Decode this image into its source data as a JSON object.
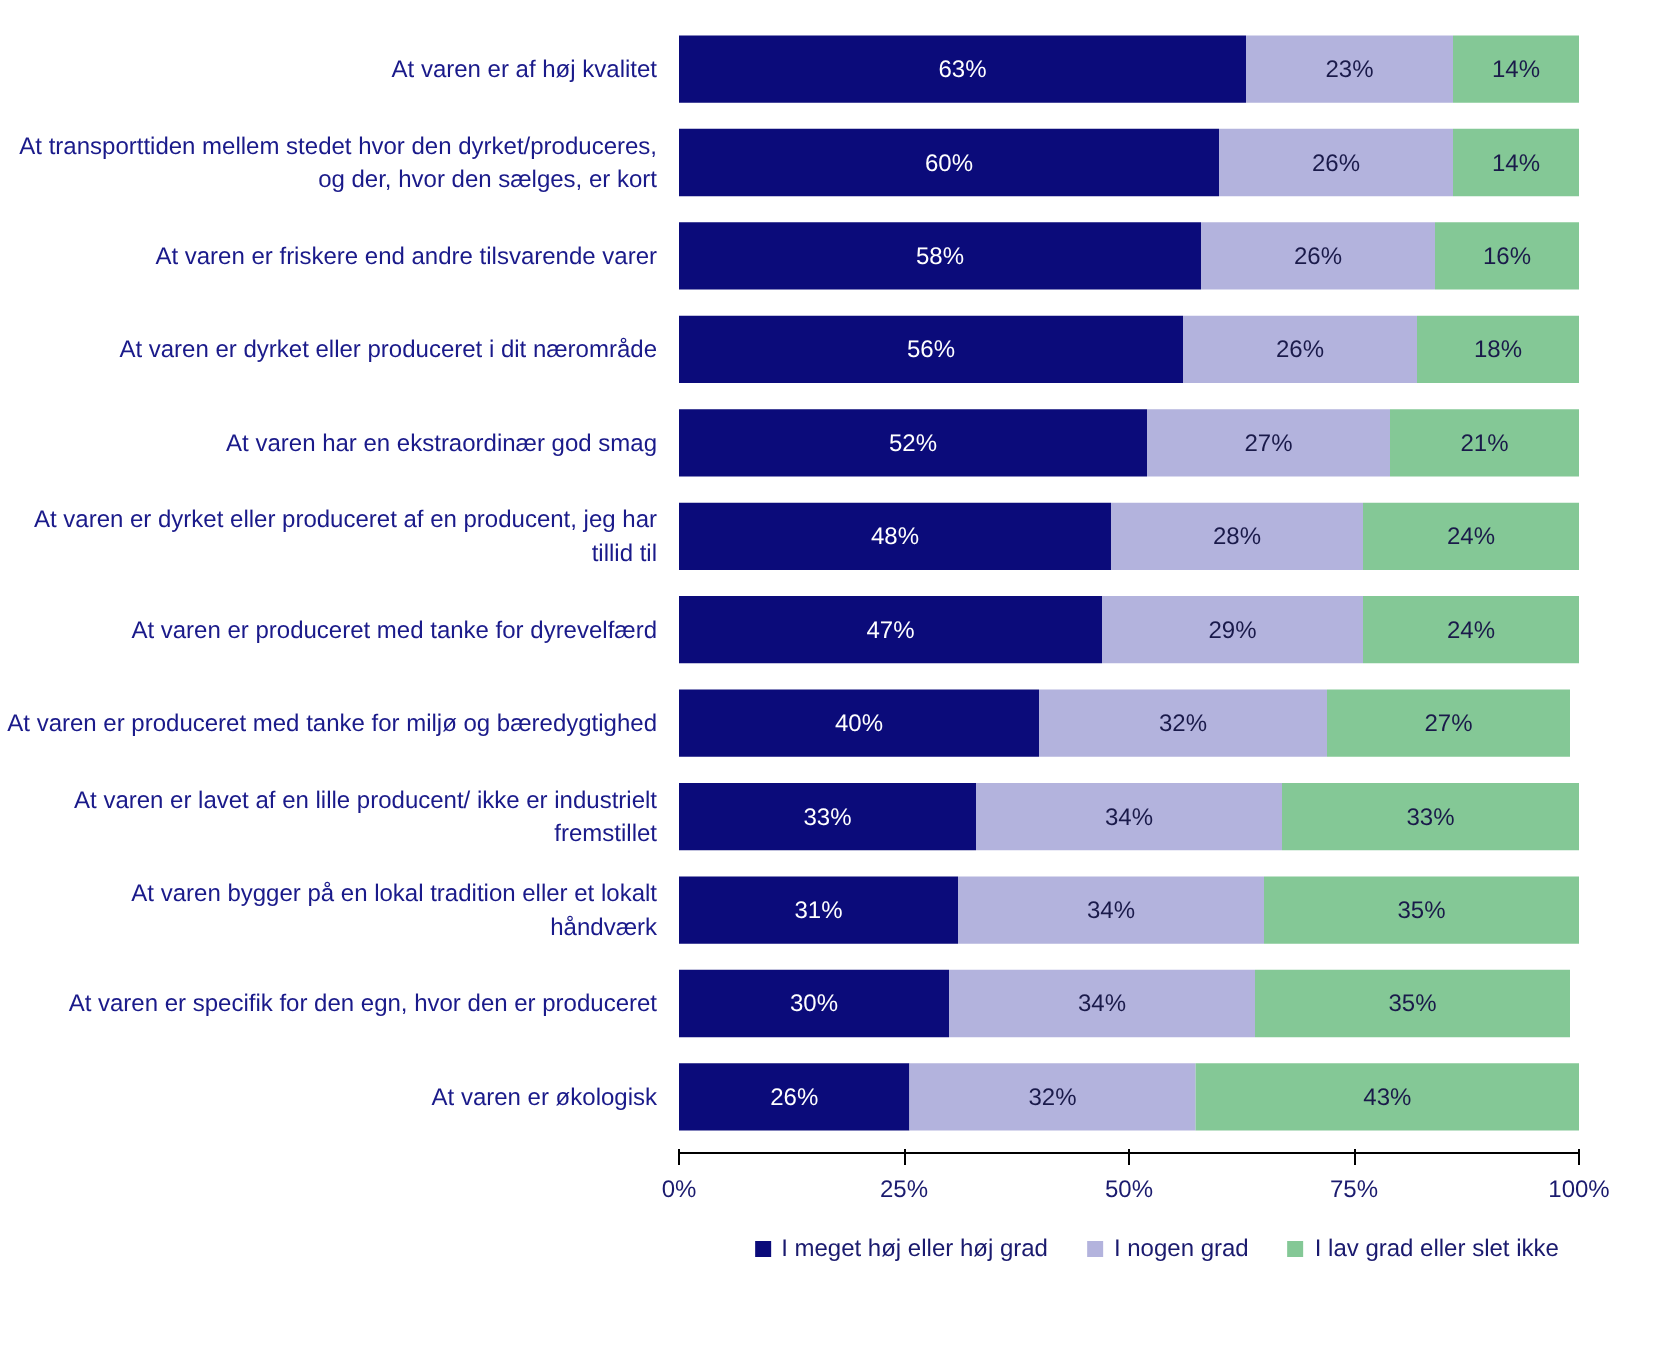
{
  "chart_data": {
    "type": "bar",
    "orientation": "horizontal",
    "stacked": true,
    "grid": false,
    "legend": "bottom",
    "categories": [
      "At varen er af høj kvalitet",
      "At transporttiden mellem stedet hvor den dyrket/produceres, og der, hvor den sælges, er kort",
      "At varen er friskere end andre tilsvarende varer",
      "At varen er dyrket eller produceret i dit nærområde",
      "At varen har en ekstraordinær god smag",
      "At varen er dyrket eller produceret af en producent, jeg har tillid til",
      "At varen er produceret med tanke for dyrevelfærd",
      "At varen er produceret med tanke for miljø og bæredygtighed",
      "At varen er lavet af en lille producent/ ikke er industrielt fremstillet",
      "At varen bygger på en lokal tradition eller et lokalt håndværk",
      "At varen er specifik for den egn, hvor den er produceret",
      "At varen er økologisk"
    ],
    "series": [
      {
        "name": "I meget høj eller høj grad",
        "color": "#0b0b7a",
        "values": [
          63,
          60,
          58,
          56,
          52,
          48,
          47,
          40,
          33,
          31,
          30,
          25.6
        ],
        "value_labels": [
          "63%",
          "60%",
          "58%",
          "56%",
          "52%",
          "48%",
          "47%",
          "40%",
          "33%",
          "31%",
          "30%",
          "26%"
        ]
      },
      {
        "name": "I nogen grad",
        "color": "#b3b3dd",
        "values": [
          23,
          26,
          26,
          26,
          27,
          28,
          29,
          32,
          34,
          34,
          34,
          31.8
        ],
        "value_labels": [
          "23%",
          "26%",
          "26%",
          "26%",
          "27%",
          "28%",
          "29%",
          "32%",
          "34%",
          "34%",
          "34%",
          "32%"
        ]
      },
      {
        "name": "I lav grad eller slet ikke",
        "color": "#84c896",
        "values": [
          14,
          14,
          16,
          18,
          21,
          24,
          24,
          27,
          33,
          35,
          35,
          42.6
        ],
        "value_labels": [
          "14%",
          "14%",
          "16%",
          "18%",
          "21%",
          "24%",
          "24%",
          "27%",
          "33%",
          "35%",
          "35%",
          "43%"
        ]
      }
    ],
    "xlim": [
      0,
      100
    ],
    "xticks": [
      {
        "value": 0,
        "label": "0%"
      },
      {
        "value": 25,
        "label": "25%"
      },
      {
        "value": 50,
        "label": "50%"
      },
      {
        "value": 75,
        "label": "75%"
      },
      {
        "value": 100,
        "label": "100%"
      }
    ]
  }
}
